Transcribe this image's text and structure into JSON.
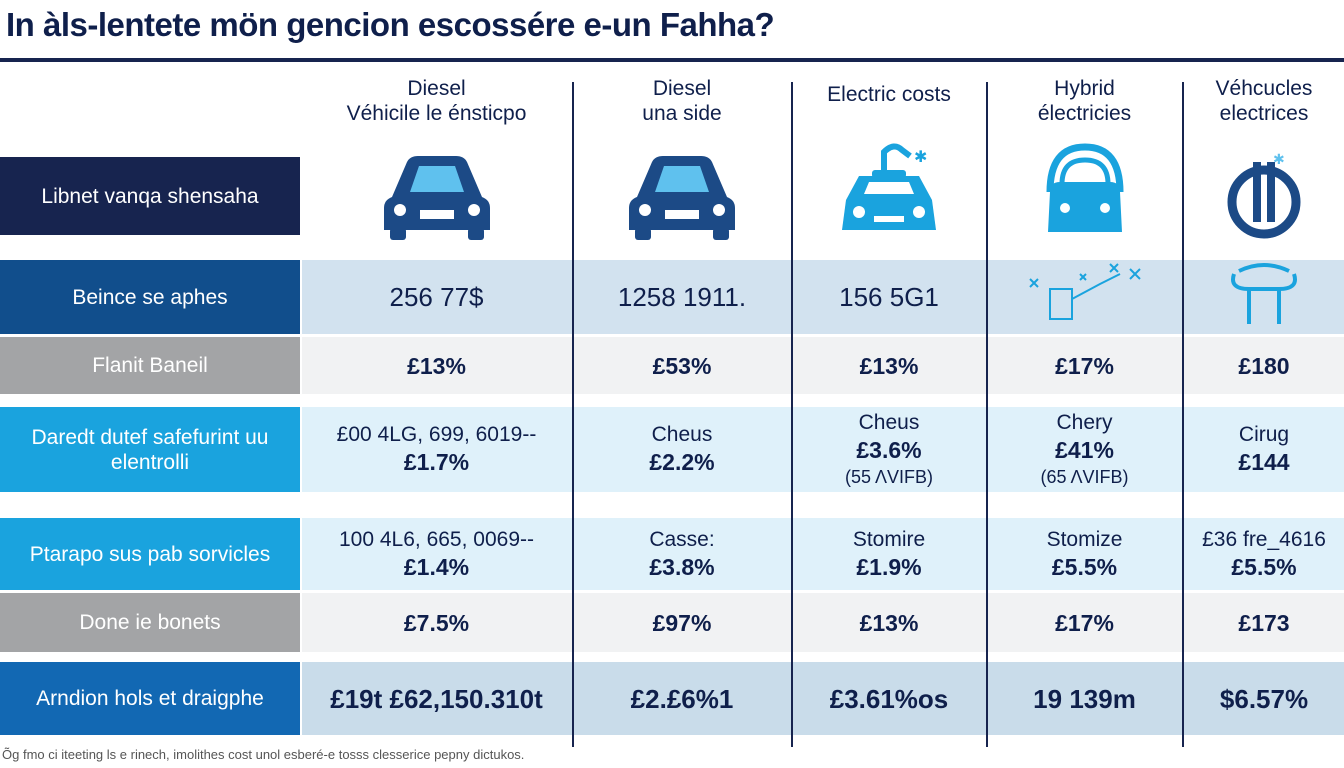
{
  "title": "In àls-lentete mön gencion escossére e-un Fahha?",
  "columns": [
    {
      "line1": "Diesel",
      "line2": "Véhicile le énsticpo",
      "icon": "car-front-icon",
      "color": "#1c4a86"
    },
    {
      "line1": "Diesel",
      "line2": "una side",
      "icon": "car-front-icon",
      "color": "#1c4a86"
    },
    {
      "line1": "Electric costs",
      "line2": "",
      "icon": "electric-car-icon",
      "color": "#1aa3de"
    },
    {
      "line1": "Hybrid",
      "line2": "électricies",
      "icon": "hybrid-car-icon",
      "color": "#1aa3de"
    },
    {
      "line1": "Véhcucles",
      "line2": "electrices",
      "icon": "ev-plug-icon",
      "color": "#1c4a86"
    }
  ],
  "header_label": "Libnet vanqa shensaha",
  "rows": [
    {
      "label": "Beince se aphes",
      "label_color": "#114e8c",
      "bg": "#d2e2ef",
      "cells": [
        {
          "sub": "",
          "main": "256 77$",
          "note": ""
        },
        {
          "sub": "",
          "main": "1258 1911.",
          "note": ""
        },
        {
          "sub": "",
          "main": "156 5G1",
          "note": ""
        },
        {
          "icon": "plug-sparks-icon"
        },
        {
          "icon": "charger-icon"
        }
      ]
    },
    {
      "label": "Flanit Baneil",
      "label_color": "#a3a4a6",
      "bg": "#f1f2f3",
      "cells": [
        {
          "main": "£13%"
        },
        {
          "main": "£53%"
        },
        {
          "main": "£13%"
        },
        {
          "main": "£17%"
        },
        {
          "main": "£180"
        }
      ]
    },
    {
      "label": "Daredt dutef safefurint uu elentrolli",
      "label_color": "#1aa3de",
      "bg": "#dff1fa",
      "cells": [
        {
          "sub": "£00 4LG, 699, 6019--",
          "main": "£1.7%"
        },
        {
          "sub": "Cheus",
          "main": "£2.2%"
        },
        {
          "sub": "Cheus",
          "main": "£3.6%",
          "note": "(55 ΛVIFB)"
        },
        {
          "sub": "Chery",
          "main": "£41%",
          "note": "(65 ΛVIFB)"
        },
        {
          "sub": "Cirug",
          "main": "£144"
        }
      ]
    },
    {
      "label": "Ptarapo sus pab sorvicles",
      "label_color": "#1aa3de",
      "bg": "#dff1fa",
      "cells": [
        {
          "sub": "100 4L6, 665, 0069--",
          "main": "£1.4%"
        },
        {
          "sub": "Casse:",
          "main": "£3.8%"
        },
        {
          "sub": "Stomire",
          "main": "£1.9%"
        },
        {
          "sub": "Stomize",
          "main": "£5.5%"
        },
        {
          "sub": "£36 fre_4616",
          "main": "£5.5%"
        }
      ]
    },
    {
      "label": "Done ie bonets",
      "label_color": "#a3a4a6",
      "bg": "#f1f2f3",
      "cells": [
        {
          "main": "£7.5%"
        },
        {
          "main": "£97%"
        },
        {
          "main": "£13%"
        },
        {
          "main": "£17%"
        },
        {
          "main": "£173"
        }
      ]
    },
    {
      "label": "Arndion hols et draigphe",
      "label_color": "#1268b3",
      "bg": "#c9dcea",
      "cells": [
        {
          "main": "£19t £62,150.310t"
        },
        {
          "main": "£2.£6%1"
        },
        {
          "main": "£3.61%os"
        },
        {
          "main": "19 139m"
        },
        {
          "main": "$6.57%"
        }
      ]
    }
  ],
  "footnote": "Õg fmo ci iteeting ls e rinech, imolithes cost unol esberé-e tosss clesserice pepny dictukos."
}
